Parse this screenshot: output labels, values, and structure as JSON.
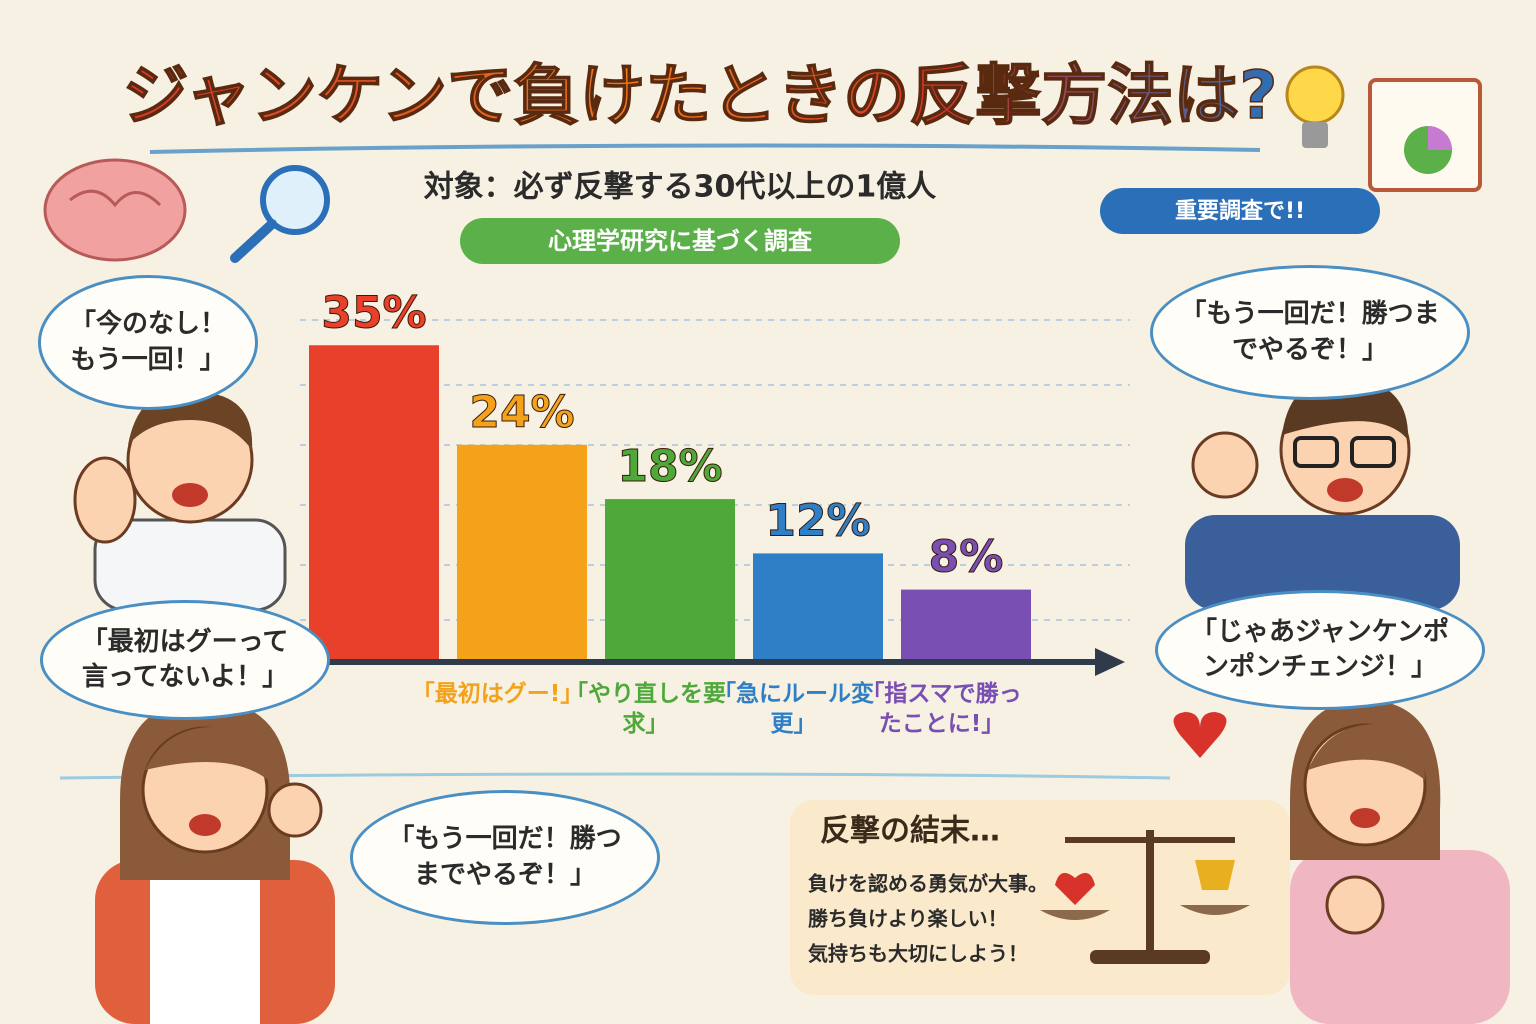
{
  "chart_data": {
    "type": "bar",
    "title": "ジャンケンで負けたときの反撃方法は?",
    "subtitle": "対象：必ず反撃する30代以上の1億人",
    "tag": "心理学研究に基づく調査",
    "badge": "重要調査で!!",
    "categories": [
      null,
      "「最初はグー!」",
      "「やり直しを要求」",
      "「急にルール変更」",
      "「指スマで勝ったことに!」"
    ],
    "values": [
      35,
      24,
      18,
      12,
      8
    ],
    "value_labels": [
      "35%",
      "24%",
      "18%",
      "12%",
      "8%"
    ],
    "colors": [
      "#e8402a",
      "#f5a21b",
      "#4fa83a",
      "#2f7fc6",
      "#7a4fb3"
    ],
    "ylim": [
      0,
      40
    ],
    "speech_bubbles": [
      "「今のなし！もう一回！」",
      "「最初はグーって言ってないよ！」",
      "「もう一回だ！勝つまでやるぞ！」",
      "「じゃあジャンケンポンポンチェンジ！」",
      "「もう一回だ！勝つまでやるぞ！」"
    ],
    "result": {
      "title": "反撃の結末…",
      "lines": [
        "負けを認める勇気が大事。",
        "勝ち負けより楽しい！",
        "気持ちも大切にしよう！"
      ]
    }
  }
}
